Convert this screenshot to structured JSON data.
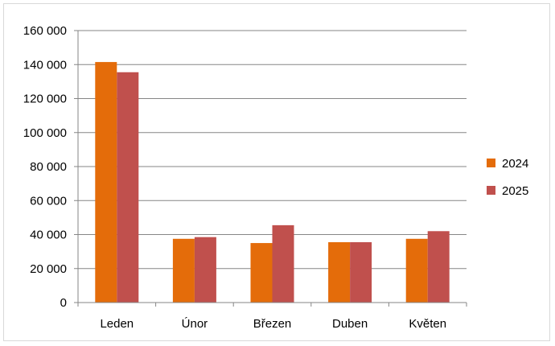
{
  "chart_data": {
    "type": "bar",
    "title": "",
    "xlabel": "",
    "ylabel": "",
    "categories": [
      "Leden",
      "Únor",
      "Březen",
      "Duben",
      "Květen"
    ],
    "series": [
      {
        "name": "2024",
        "color": "#E46C0A",
        "values": [
          141500,
          37500,
          35000,
          35500,
          37500
        ]
      },
      {
        "name": "2025",
        "color": "#C0504D",
        "values": [
          135500,
          38500,
          45500,
          35500,
          42000
        ]
      }
    ],
    "ylim": [
      0,
      160000
    ],
    "yticks": [
      0,
      20000,
      40000,
      60000,
      80000,
      100000,
      120000,
      140000,
      160000
    ],
    "ytick_labels": [
      "0",
      "20 000",
      "40 000",
      "60 000",
      "80 000",
      "100 000",
      "120 000",
      "140 000",
      "160 000"
    ],
    "grid": true,
    "legend_position": "right"
  }
}
